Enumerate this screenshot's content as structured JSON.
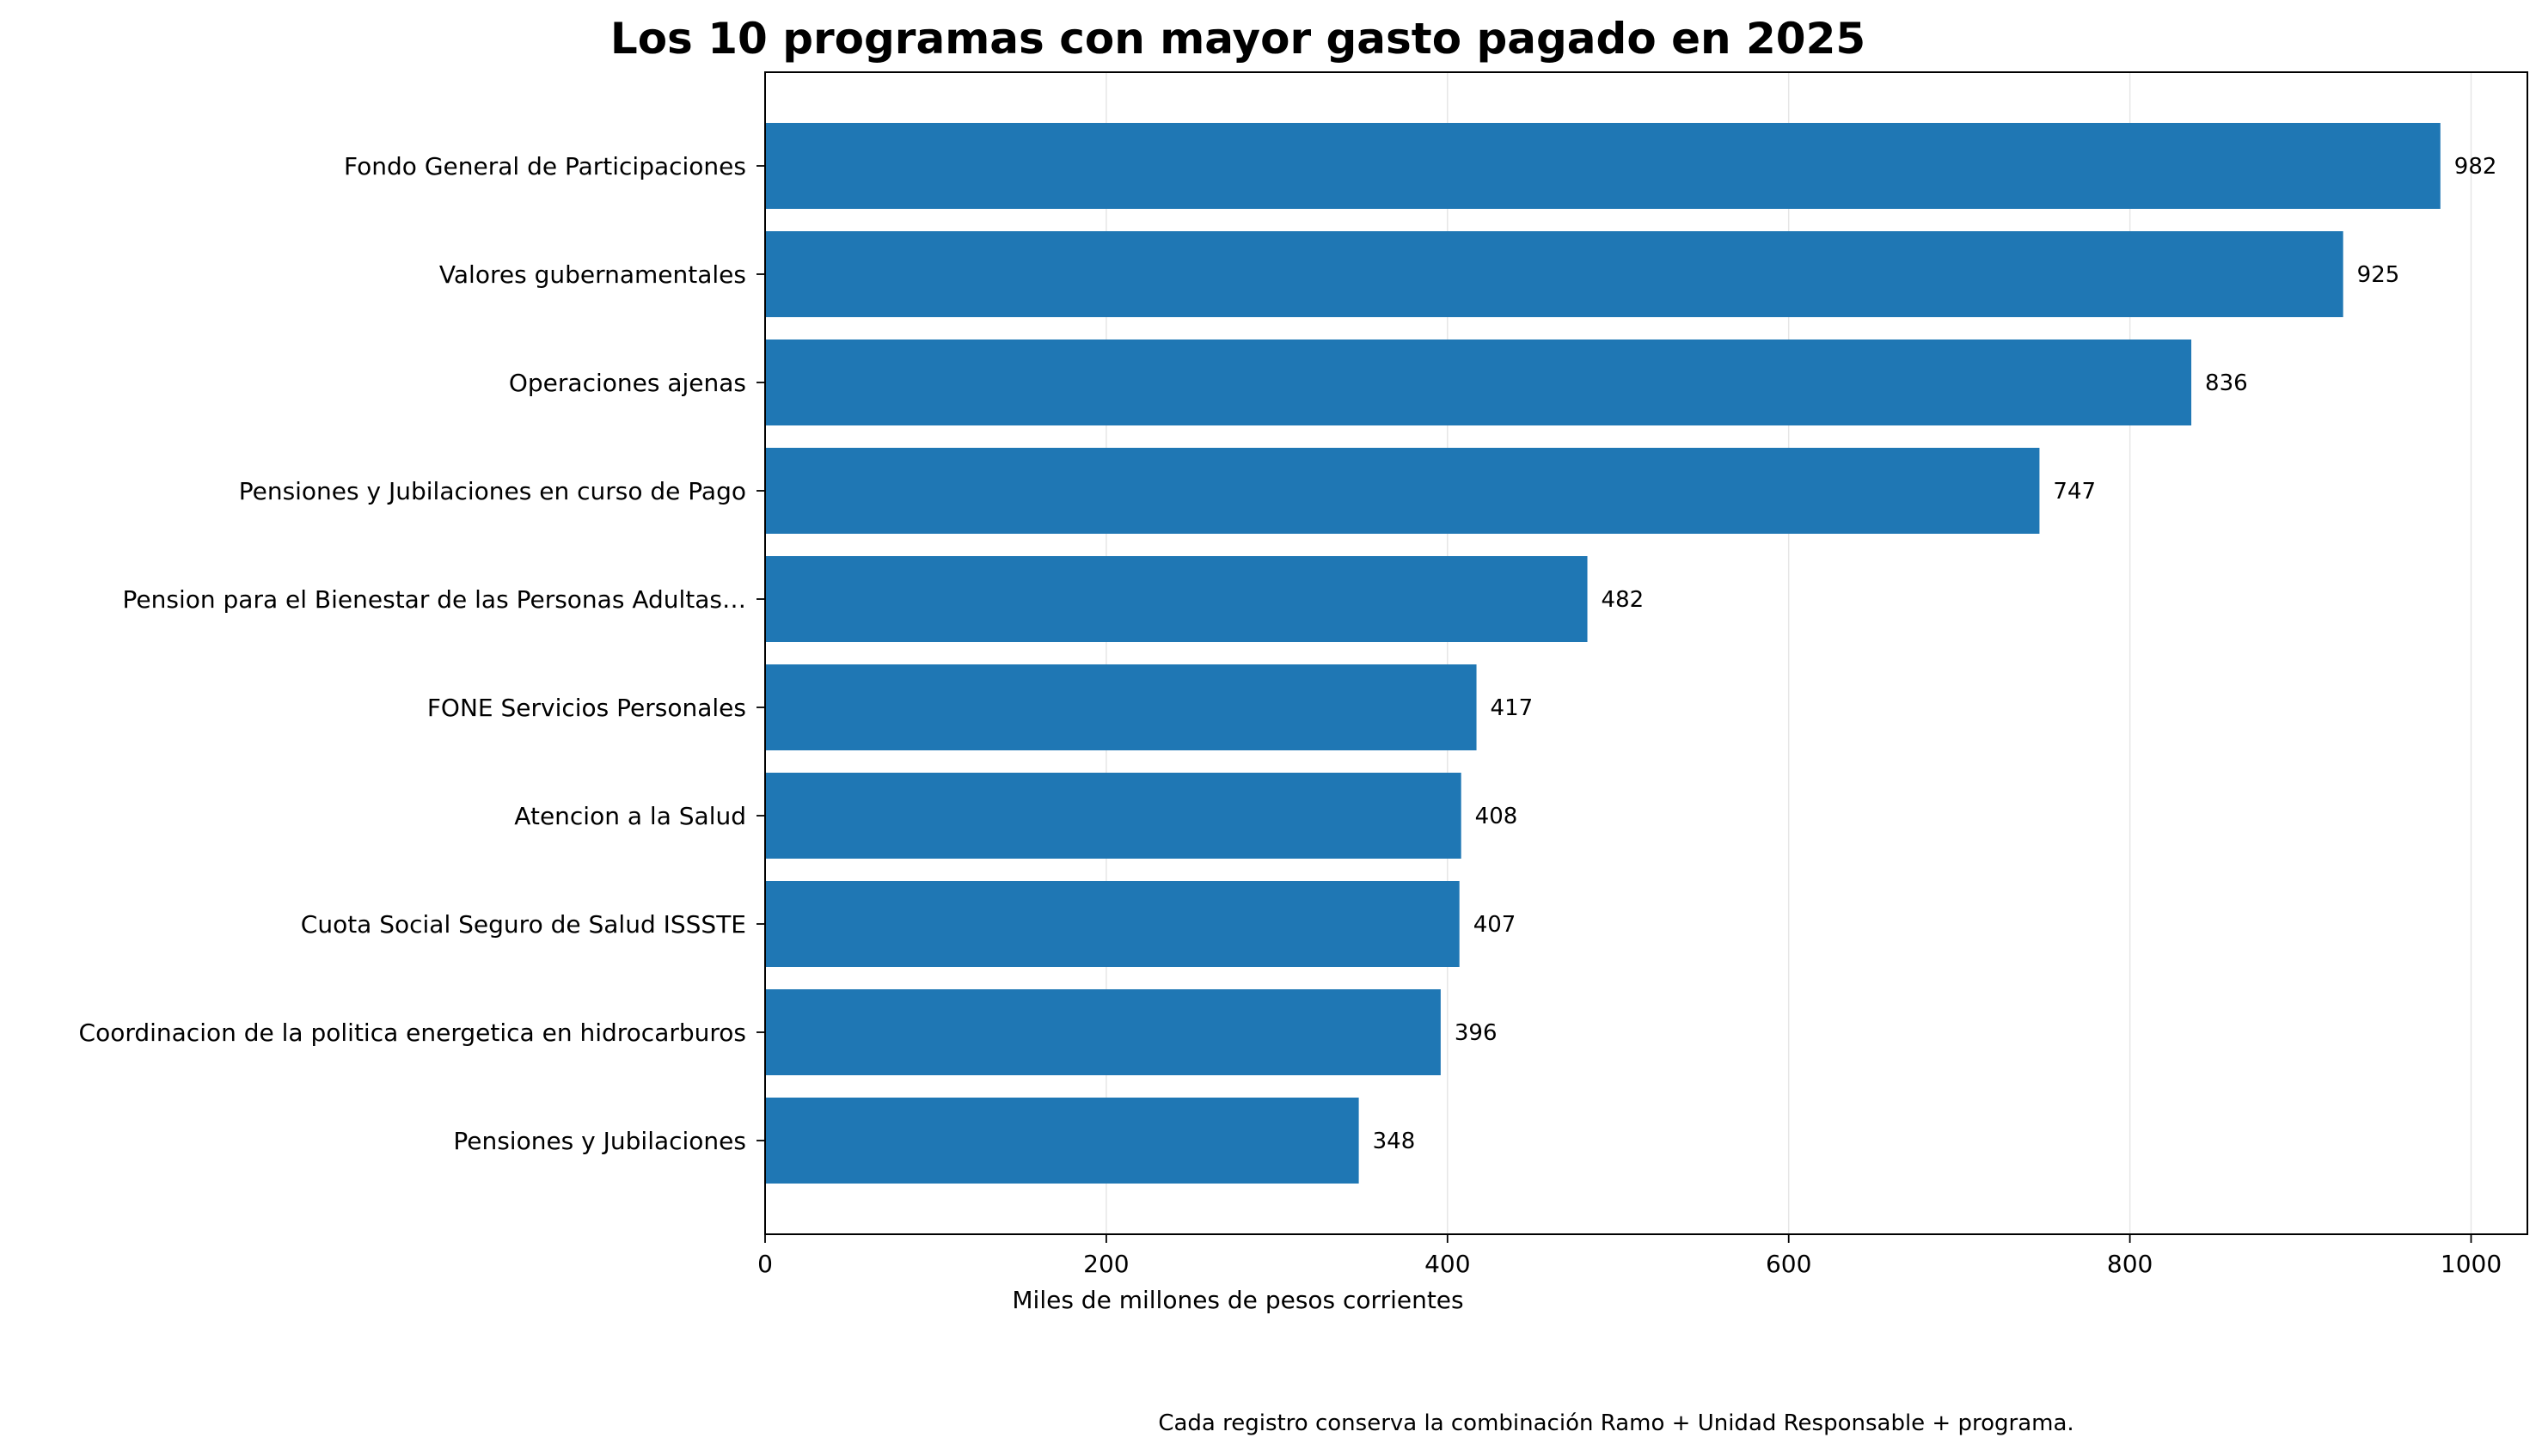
{
  "chart_data": {
    "type": "bar",
    "orientation": "horizontal",
    "title": "Los 10 programas con mayor gasto pagado en 2025",
    "xlabel": "Miles de millones de pesos corrientes",
    "ylabel": "",
    "categories": [
      "Fondo General de Participaciones",
      "Valores gubernamentales",
      "Operaciones ajenas",
      "Pensiones y Jubilaciones en curso de Pago",
      "Pension para el Bienestar de las Personas Adultas…",
      "FONE Servicios Personales",
      "Atencion a la Salud",
      "Cuota Social Seguro de Salud ISSSTE",
      "Coordinacion de la politica energetica en hidrocarburos",
      "Pensiones y Jubilaciones"
    ],
    "values": [
      982,
      925,
      836,
      747,
      482,
      417,
      408,
      407,
      396,
      348
    ],
    "value_labels": [
      "982",
      "925",
      "836",
      "747",
      "482",
      "417",
      "408",
      "407",
      "396",
      "348"
    ],
    "xlim": [
      0,
      1033
    ],
    "xticks": [
      0,
      200,
      400,
      600,
      800,
      1000
    ],
    "xtick_labels": [
      "0",
      "200",
      "400",
      "600",
      "800",
      "1000"
    ],
    "grid": "vertical",
    "legend": "none",
    "bar_color": "#1f77b4",
    "footnote": "Cada registro conserva la combinación Ramo + Unidad Responsable + programa."
  }
}
